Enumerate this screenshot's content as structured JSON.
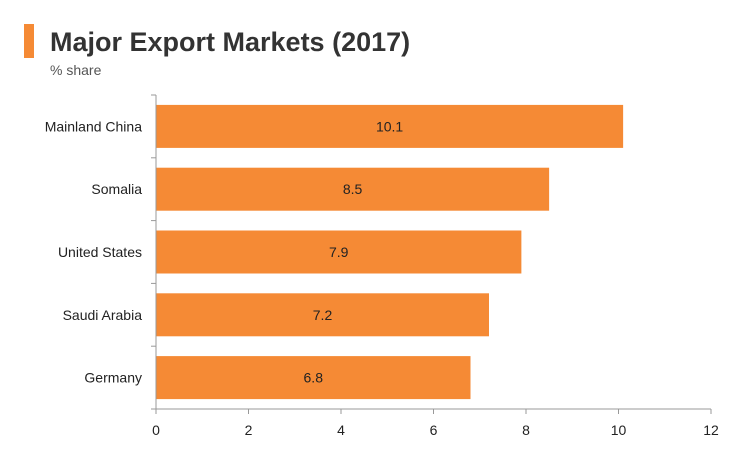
{
  "header": {
    "title": "Major Export Markets (2017)",
    "subtitle": "% share"
  },
  "colors": {
    "accent": "#f58a35",
    "bar": "#f58a35",
    "axis": "#999999",
    "text": "#222222"
  },
  "chart_data": {
    "type": "bar",
    "orientation": "horizontal",
    "title": "Major Export Markets (2017)",
    "subtitle": "% share",
    "categories": [
      "Mainland China",
      "Somalia",
      "United States",
      "Saudi Arabia",
      "Germany"
    ],
    "values": [
      10.1,
      8.5,
      7.9,
      7.2,
      6.8
    ],
    "value_labels": [
      "10.1",
      "8.5",
      "7.9",
      "7.2",
      "6.8"
    ],
    "xlim": [
      0,
      12
    ],
    "xticks": [
      0,
      2,
      4,
      6,
      8,
      10,
      12
    ],
    "xlabel": "",
    "ylabel": "",
    "grid": false,
    "legend": "none"
  }
}
